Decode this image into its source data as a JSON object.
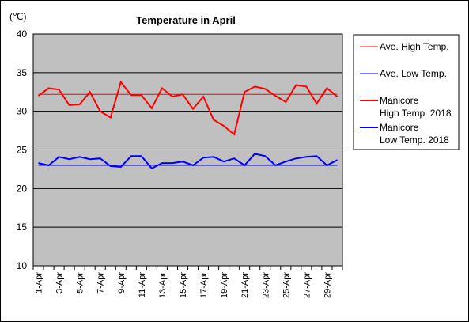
{
  "chart_data": {
    "type": "line",
    "title": "Temperature in April",
    "unit_label": "(℃)",
    "ylim": [
      10,
      40
    ],
    "yticks": [
      10,
      15,
      20,
      25,
      30,
      35,
      40
    ],
    "grid": true,
    "legend_position": "right",
    "x_labels_shown": [
      "1-Apr",
      "3-Apr",
      "5-Apr",
      "7-Apr",
      "9-Apr",
      "11-Apr",
      "13-Apr",
      "15-Apr",
      "17-Apr",
      "19-Apr",
      "21-Apr",
      "23-Apr",
      "25-Apr",
      "27-Apr",
      "29-Apr"
    ],
    "days": [
      1,
      2,
      3,
      4,
      5,
      6,
      7,
      8,
      9,
      10,
      11,
      12,
      13,
      14,
      15,
      16,
      17,
      18,
      19,
      20,
      21,
      22,
      23,
      24,
      25,
      26,
      27,
      28,
      29,
      30
    ],
    "series": [
      {
        "name": "Ave. High Temp.",
        "color": "#ff0000",
        "style": "thin",
        "values": [
          32.2,
          32.2,
          32.2,
          32.2,
          32.2,
          32.2,
          32.2,
          32.2,
          32.2,
          32.2,
          32.2,
          32.2,
          32.2,
          32.2,
          32.2,
          32.2,
          32.2,
          32.2,
          32.2,
          32.2,
          32.2,
          32.2,
          32.2,
          32.2,
          32.2,
          32.2,
          32.2,
          32.2,
          32.2,
          32.2
        ]
      },
      {
        "name": "Ave. Low Temp.",
        "color": "#0000ff",
        "style": "thin",
        "values": [
          23.0,
          23.0,
          23.0,
          23.0,
          23.0,
          23.0,
          23.0,
          23.0,
          23.0,
          23.0,
          23.0,
          23.0,
          23.0,
          23.0,
          23.0,
          23.0,
          23.0,
          23.0,
          23.0,
          23.0,
          23.0,
          23.0,
          23.0,
          23.0,
          23.0,
          23.0,
          23.0,
          23.0,
          23.0,
          23.0
        ]
      },
      {
        "name": "Manicore High Temp. 2018",
        "legend_lines": [
          "Manicore",
          "High Temp. 2018"
        ],
        "color": "#ff0000",
        "style": "thick",
        "values": [
          32.0,
          33.0,
          32.8,
          30.8,
          30.9,
          32.5,
          30.0,
          29.2,
          33.8,
          32.1,
          32.1,
          30.4,
          33.0,
          31.9,
          32.2,
          30.3,
          31.9,
          28.9,
          28.1,
          27.0,
          32.5,
          33.2,
          32.9,
          32.0,
          31.2,
          33.4,
          33.2,
          31.0,
          33.0,
          31.9
        ]
      },
      {
        "name": "Manicore Low Temp. 2018",
        "legend_lines": [
          "Manicore",
          "Low Temp. 2018"
        ],
        "color": "#0000ff",
        "style": "thick",
        "values": [
          23.3,
          23.0,
          24.1,
          23.8,
          24.1,
          23.8,
          23.9,
          22.9,
          22.8,
          24.2,
          24.2,
          22.6,
          23.3,
          23.3,
          23.5,
          23.0,
          24.0,
          24.1,
          23.5,
          23.9,
          23.0,
          24.5,
          24.2,
          23.0,
          23.5,
          23.9,
          24.1,
          24.2,
          23.0,
          23.7
        ]
      }
    ]
  }
}
